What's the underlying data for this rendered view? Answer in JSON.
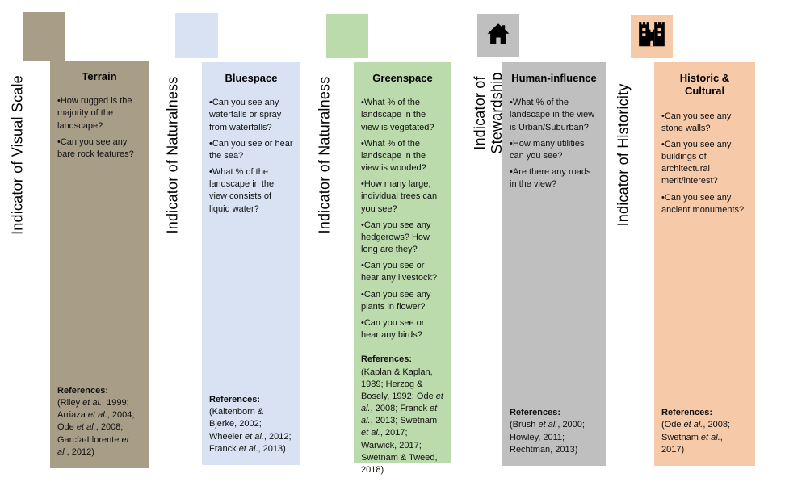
{
  "diagram": {
    "bullet_char": "•",
    "columns": [
      {
        "key": "terrain",
        "indicator_label": "Indicator of Visual Scale",
        "title": "Terrain",
        "color": "#A89E88",
        "icon": null,
        "questions": [
          "How rugged is the majority of the landscape?",
          "Can you see any bare rock features?"
        ],
        "references_label": "References:",
        "references": "(Riley et al., 1999; Arriaza et al., 2004; Ode et al., 2008; García-Llorente et al., 2012)"
      },
      {
        "key": "bluespace",
        "indicator_label": "Indicator of Naturalness",
        "title": "Bluespace",
        "color": "#D9E2F3",
        "icon": null,
        "questions": [
          "Can you see any waterfalls or spray from waterfalls?",
          "Can you see or hear the sea?",
          "What % of the landscape in the view consists of liquid water?"
        ],
        "references_label": "References:",
        "references": "(Kaltenborn & Bjerke, 2002; Wheeler et al., 2012; Franck et al., 2013)"
      },
      {
        "key": "greenspace",
        "indicator_label": "Indicator of Naturalness",
        "title": "Greenspace",
        "color": "#BCDBAC",
        "icon": null,
        "questions": [
          "What % of the landscape in the view is vegetated?",
          "What % of the landscape in the view is wooded?",
          "How many large, individual trees can you see?",
          "Can you see any hedgerows? How long are they?",
          "Can you see or hear any livestock?",
          "Can you see any plants in flower?",
          "Can you see or hear any birds?"
        ],
        "references_label": "References:",
        "references": "(Kaplan & Kaplan, 1989; Herzog & Bosely, 1992; Ode et al., 2008; Franck et al., 2013; Swetnam et al., 2017; Warwick, 2017; Swetnam & Tweed, 2018)"
      },
      {
        "key": "human-influence",
        "indicator_label": "Indicator of\nStewardship",
        "title": "Human-influence",
        "color": "#BFBFBF",
        "icon": "home-icon",
        "questions": [
          "What % of the landscape in the view is Urban/Suburban?",
          "How many utilities can you see?",
          "Are there any roads in the view?"
        ],
        "references_label": "References:",
        "references": "(Brush et al., 2000; Howley, 2011; Rechtman, 2013)"
      },
      {
        "key": "historic-cultural",
        "indicator_label": "Indicator of Historicity",
        "title": "Historic & Cultural",
        "color": "#F6C9A9",
        "icon": "castle-icon",
        "questions": [
          "Can you see any stone walls?",
          "Can you see any buildings of architectural merit/interest?",
          "Can you see any ancient monuments?"
        ],
        "references_label": "References:",
        "references": "(Ode et al., 2008; Swetnam et al., 2017)"
      }
    ]
  }
}
